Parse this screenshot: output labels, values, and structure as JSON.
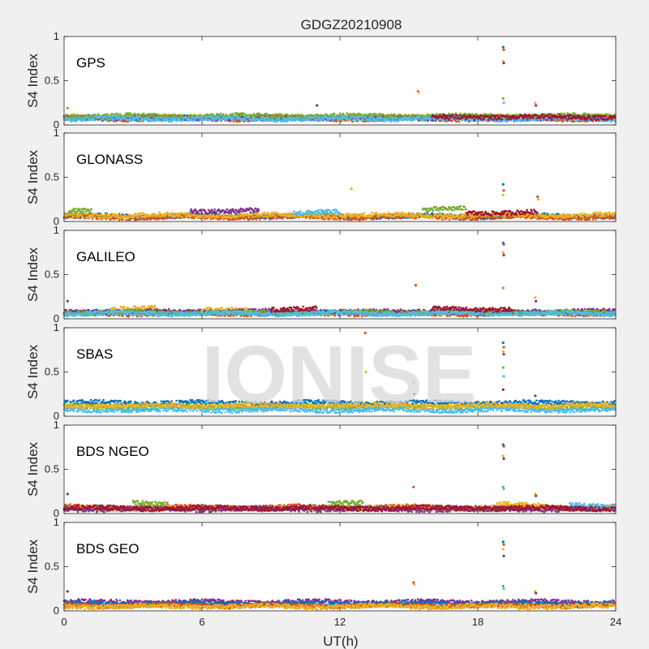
{
  "watermark": "IONISE",
  "chart_data": {
    "type": "scatter",
    "title": "GDGZ20210908",
    "xlabel": "UT(h)",
    "ylabel": "S4 Index",
    "xlim": [
      0,
      24
    ],
    "ylim": [
      0,
      1
    ],
    "xticks": [
      0,
      6,
      12,
      18,
      24
    ],
    "xtick_labels": [
      "0",
      "6",
      "12",
      "18",
      "24"
    ],
    "yticks": [
      0,
      0.5,
      1
    ],
    "ytick_labels": [
      "0",
      "0.5",
      "1"
    ],
    "grid": false,
    "colors": [
      "#0072BD",
      "#D95319",
      "#EDB120",
      "#7E2F8E",
      "#77AC30",
      "#4DBEEE",
      "#A2142F"
    ],
    "panels": [
      {
        "label": "GPS",
        "series_profiles": [
          {
            "color": "#0072BD",
            "segments": [
              {
                "x": [
                  0,
                  24
                ],
                "level": 0.08
              }
            ]
          },
          {
            "color": "#D95319",
            "segments": [
              {
                "x": [
                  0,
                  24
                ],
                "level": 0.07
              }
            ]
          },
          {
            "color": "#EDB120",
            "segments": [
              {
                "x": [
                  0,
                  24
                ],
                "level": 0.09
              }
            ]
          },
          {
            "color": "#7E2F8E",
            "segments": [
              {
                "x": [
                  0,
                  24
                ],
                "level": 0.08
              }
            ]
          },
          {
            "color": "#77AC30",
            "segments": [
              {
                "x": [
                  0,
                  24
                ],
                "level": 0.1
              }
            ]
          },
          {
            "color": "#4DBEEE",
            "segments": [
              {
                "x": [
                  0,
                  24
                ],
                "level": 0.07
              }
            ]
          },
          {
            "color": "#A2142F",
            "segments": [
              {
                "x": [
                  16,
                  24
                ],
                "level": 0.09
              }
            ]
          }
        ],
        "spikes": [
          {
            "x": 19.1,
            "y": [
              0.88,
              0.85,
              0.72,
              0.7,
              0.3,
              0.25
            ]
          },
          {
            "x": 15.4,
            "y": [
              0.38,
              0.37
            ]
          },
          {
            "x": 20.5,
            "y": [
              0.25,
              0.22
            ]
          },
          {
            "x": 11.0,
            "y": [
              0.22
            ]
          },
          {
            "x": 0.15,
            "y": [
              0.19
            ]
          }
        ]
      },
      {
        "label": "GLONASS",
        "series_profiles": [
          {
            "color": "#0072BD",
            "segments": [
              {
                "x": [
                  0,
                  24
                ],
                "level": 0.06
              }
            ]
          },
          {
            "color": "#D95319",
            "segments": [
              {
                "x": [
                  0,
                  24
                ],
                "level": 0.05
              }
            ]
          },
          {
            "color": "#EDB120",
            "segments": [
              {
                "x": [
                  0,
                  24
                ],
                "level": 0.07
              }
            ]
          },
          {
            "color": "#7E2F8E",
            "segments": [
              {
                "x": [
                  5.5,
                  8.5
                ],
                "level": 0.12
              }
            ]
          },
          {
            "color": "#77AC30",
            "segments": [
              {
                "x": [
                  15.6,
                  17.5
                ],
                "level": 0.14
              },
              {
                "x": [
                  0.2,
                  1.2
                ],
                "level": 0.13
              }
            ]
          },
          {
            "color": "#4DBEEE",
            "segments": [
              {
                "x": [
                  10,
                  12
                ],
                "level": 0.1
              }
            ]
          },
          {
            "color": "#A2142F",
            "segments": [
              {
                "x": [
                  17.5,
                  20.6
                ],
                "level": 0.1
              }
            ]
          }
        ],
        "spikes": [
          {
            "x": 19.1,
            "y": [
              0.42,
              0.35,
              0.3
            ]
          },
          {
            "x": 20.6,
            "y": [
              0.28,
              0.25
            ]
          },
          {
            "x": 12.5,
            "y": [
              0.37
            ]
          }
        ]
      },
      {
        "label": "GALILEO",
        "series_profiles": [
          {
            "color": "#0072BD",
            "segments": [
              {
                "x": [
                  0,
                  24
                ],
                "level": 0.07
              }
            ]
          },
          {
            "color": "#D95319",
            "segments": [
              {
                "x": [
                  0,
                  24
                ],
                "level": 0.06
              }
            ]
          },
          {
            "color": "#EDB120",
            "segments": [
              {
                "x": [
                  2,
                  4
                ],
                "level": 0.12
              },
              {
                "x": [
                  6,
                  8
                ],
                "level": 0.11
              }
            ]
          },
          {
            "color": "#7E2F8E",
            "segments": [
              {
                "x": [
                  0,
                  24
                ],
                "level": 0.08
              }
            ]
          },
          {
            "color": "#77AC30",
            "segments": [
              {
                "x": [
                  0,
                  24
                ],
                "level": 0.07
              }
            ]
          },
          {
            "color": "#4DBEEE",
            "segments": [
              {
                "x": [
                  0,
                  24
                ],
                "level": 0.06
              }
            ]
          },
          {
            "color": "#A2142F",
            "segments": [
              {
                "x": [
                  16,
                  19.5
                ],
                "level": 0.11
              },
              {
                "x": [
                  9,
                  11
                ],
                "level": 0.11
              }
            ]
          }
        ],
        "spikes": [
          {
            "x": 19.1,
            "y": [
              0.86,
              0.84,
              0.75,
              0.72,
              0.35
            ]
          },
          {
            "x": 15.3,
            "y": [
              0.38
            ]
          },
          {
            "x": 20.5,
            "y": [
              0.24,
              0.2
            ]
          },
          {
            "x": 0.15,
            "y": [
              0.2
            ]
          }
        ]
      },
      {
        "label": "SBAS",
        "series_profiles": [
          {
            "color": "#0072BD",
            "segments": [
              {
                "x": [
                  0,
                  24
                ],
                "level": 0.15
              }
            ]
          },
          {
            "color": "#77AC30",
            "segments": [
              {
                "x": [
                  0,
                  24
                ],
                "level": 0.1
              }
            ]
          },
          {
            "color": "#4DBEEE",
            "segments": [
              {
                "x": [
                  0,
                  24
                ],
                "level": 0.07
              }
            ]
          },
          {
            "color": "#EDB120",
            "segments": [
              {
                "x": [
                  0,
                  24
                ],
                "level": 0.12
              }
            ]
          }
        ],
        "spikes": [
          {
            "x": 19.1,
            "y": [
              0.83,
              0.78,
              0.73,
              0.7,
              0.55,
              0.45,
              0.3
            ]
          },
          {
            "x": 13.1,
            "y": [
              0.94,
              0.5
            ]
          },
          {
            "x": 15.2,
            "y": [
              0.38,
              0.25
            ]
          },
          {
            "x": 20.5,
            "y": [
              0.23
            ]
          }
        ]
      },
      {
        "label": "BDS NGEO",
        "series_profiles": [
          {
            "color": "#0072BD",
            "segments": [
              {
                "x": [
                  0,
                  24
                ],
                "level": 0.06
              }
            ]
          },
          {
            "color": "#D95319",
            "segments": [
              {
                "x": [
                  0,
                  24
                ],
                "level": 0.07
              }
            ]
          },
          {
            "color": "#EDB120",
            "segments": [
              {
                "x": [
                  18.8,
                  21
                ],
                "level": 0.1
              },
              {
                "x": [
                  0,
                  24
                ],
                "level": 0.06
              }
            ]
          },
          {
            "color": "#7E2F8E",
            "segments": [
              {
                "x": [
                  0,
                  24
                ],
                "level": 0.05
              }
            ]
          },
          {
            "color": "#77AC30",
            "segments": [
              {
                "x": [
                  3,
                  4.5
                ],
                "level": 0.11
              },
              {
                "x": [
                  11.5,
                  13
                ],
                "level": 0.11
              }
            ]
          },
          {
            "color": "#4DBEEE",
            "segments": [
              {
                "x": [
                  22,
                  24
                ],
                "level": 0.09
              }
            ]
          },
          {
            "color": "#A2142F",
            "segments": [
              {
                "x": [
                  0,
                  24
                ],
                "level": 0.06
              }
            ]
          }
        ],
        "spikes": [
          {
            "x": 19.1,
            "y": [
              0.78,
              0.76,
              0.65,
              0.62,
              0.3,
              0.28
            ]
          },
          {
            "x": 15.2,
            "y": [
              0.3
            ]
          },
          {
            "x": 20.5,
            "y": [
              0.22,
              0.2
            ]
          },
          {
            "x": 0.15,
            "y": [
              0.22
            ]
          }
        ]
      },
      {
        "label": "BDS GEO",
        "series_profiles": [
          {
            "color": "#7E2F8E",
            "segments": [
              {
                "x": [
                  0,
                  24
                ],
                "level": 0.1
              }
            ]
          },
          {
            "color": "#0072BD",
            "segments": [
              {
                "x": [
                  0,
                  24
                ],
                "level": 0.08
              }
            ]
          },
          {
            "color": "#D95319",
            "segments": [
              {
                "x": [
                  0,
                  24
                ],
                "level": 0.06
              }
            ]
          },
          {
            "color": "#EDB120",
            "segments": [
              {
                "x": [
                  0,
                  24
                ],
                "level": 0.05
              }
            ]
          }
        ],
        "spikes": [
          {
            "x": 19.1,
            "y": [
              0.78,
              0.75,
              0.7,
              0.62,
              0.28,
              0.25
            ]
          },
          {
            "x": 15.2,
            "y": [
              0.32,
              0.3
            ]
          },
          {
            "x": 20.5,
            "y": [
              0.22,
              0.2
            ]
          },
          {
            "x": 0.15,
            "y": [
              0.22
            ]
          }
        ]
      }
    ]
  }
}
